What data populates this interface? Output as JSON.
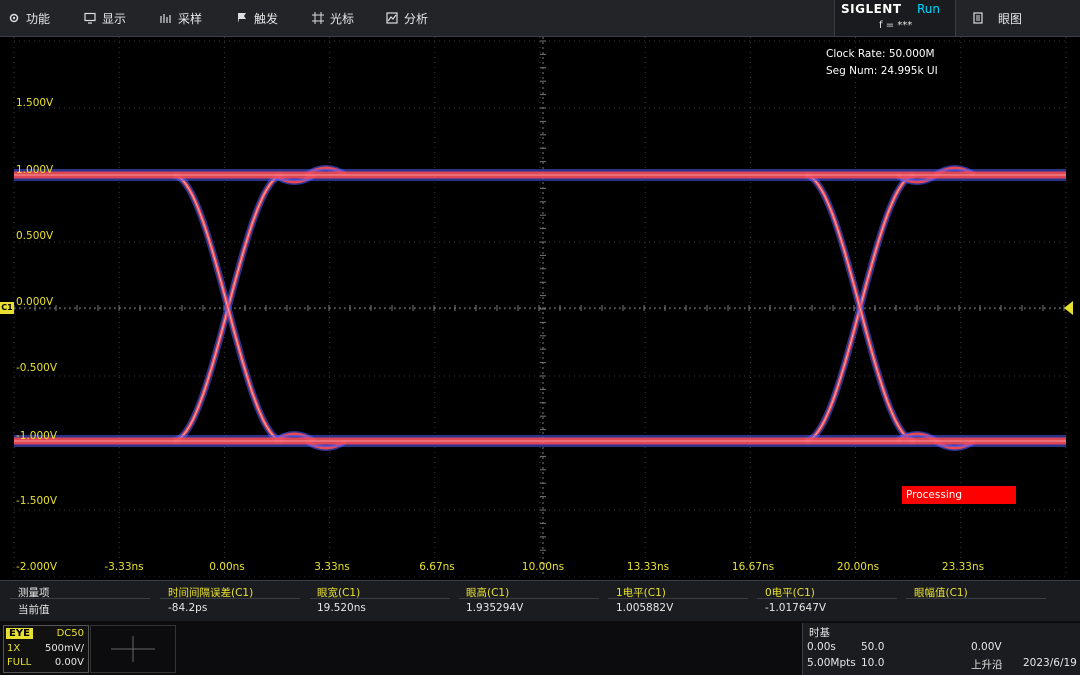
{
  "menu": {
    "items": [
      {
        "label": "功能",
        "icon": "gear-icon"
      },
      {
        "label": "显示",
        "icon": "monitor-icon"
      },
      {
        "label": "采样",
        "icon": "sampling-icon"
      },
      {
        "label": "触发",
        "icon": "trigger-flag-icon"
      },
      {
        "label": "光标",
        "icon": "cursor-crosshair-icon"
      },
      {
        "label": "分析",
        "icon": "analysis-icon"
      }
    ],
    "brand": "SIGLENT",
    "run_state": "Run",
    "frequency": "f = ***",
    "eye_label": "眼图"
  },
  "plot": {
    "y_ticks": [
      "1.500V",
      "1.000V",
      "0.500V",
      "0.000V",
      "-0.500V",
      "-1.000V",
      "-1.500V",
      "-2.000V"
    ],
    "x_ticks": [
      "-3.33ns",
      "0.00ns",
      "3.33ns",
      "6.67ns",
      "10.00ns",
      "13.33ns",
      "16.67ns",
      "20.00ns",
      "23.33ns"
    ],
    "clock_rate": "Clock Rate: 50.000M",
    "seg_num": "Seg Num: 24.995k UI",
    "processing": "Processing",
    "channel_marker": "C1",
    "colors": {
      "eye_core": "#ff4a4a",
      "eye_outer": "#4a5cff",
      "accent": "#e8e030"
    }
  },
  "measurements": {
    "row_header": "测量项",
    "row_current": "当前值",
    "columns": [
      {
        "name": "时间间隔误差(C1)",
        "value": "-84.2ps"
      },
      {
        "name": "眼宽(C1)",
        "value": "19.520ns"
      },
      {
        "name": "眼高(C1)",
        "value": "1.935294V"
      },
      {
        "name": "1电平(C1)",
        "value": "1.005882V"
      },
      {
        "name": "0电平(C1)",
        "value": "-1.017647V"
      },
      {
        "name": "眼幅值(C1)",
        "value": ""
      }
    ]
  },
  "channel": {
    "mode": "EYE",
    "coupling": "DC50",
    "probe": "1X",
    "scale": "500mV/",
    "bandwidth": "FULL",
    "offset": "0.00V"
  },
  "timebase": {
    "title": "时基",
    "delay": "0.00s",
    "scale": "50.0",
    "memory": "5.00Mpts",
    "sample_rate": "10.0",
    "trigger_level": "0.00V",
    "trigger_edge": "上升沿",
    "date": "2023/6/19"
  }
}
